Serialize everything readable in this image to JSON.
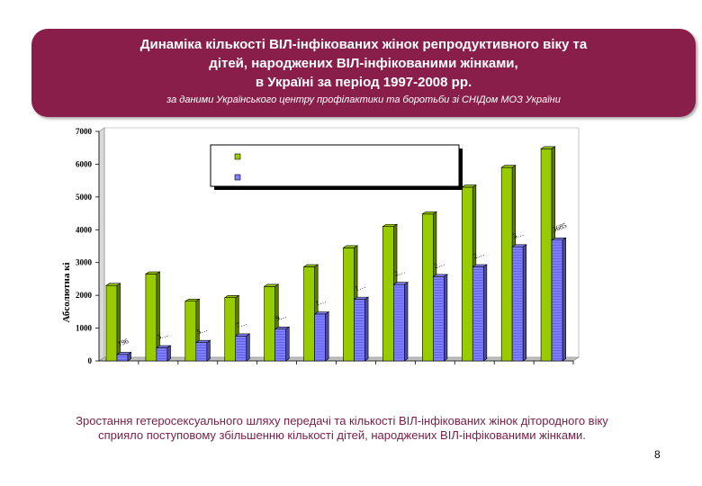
{
  "title": {
    "line1": "Динаміка кількості  ВІЛ-інфікованих жінок репродуктивного віку та",
    "line2": "дітей, народжених ВІЛ-інфікованими жінками,",
    "line3": "в Україні за період 1997-2008 рр.",
    "source": "за даними Українського центру профілактики та боротьби зі СНІДом МОЗ України"
  },
  "chart_data": {
    "type": "bar",
    "ylabel": "Абсолютна кі",
    "ylim": [
      0,
      7000
    ],
    "yticks": [
      0,
      1000,
      2000,
      3000,
      4000,
      5000,
      6000,
      7000
    ],
    "legend_position": "top-center",
    "series": [
      {
        "color": "#99cc00",
        "values": [
          2300,
          2650,
          1820,
          1930,
          2270,
          2870,
          3450,
          4100,
          4480,
          5300,
          5900,
          6470
        ]
      },
      {
        "color": "#8080ff",
        "values": [
          196,
          400,
          560,
          760,
          970,
          1430,
          1880,
          2330,
          2570,
          2870,
          3480,
          3685
        ]
      }
    ],
    "data_labels": [
      "196",
      "3…",
      "5…",
      "7…",
      "9…",
      "1…",
      "1…",
      "2…",
      "2…",
      "2…",
      "3…",
      "3685"
    ]
  },
  "caption": "Зростання гетеросексуального шляху передачі та кількості ВІЛ-інфікованих жінок дітородного віку сприяло поступовому збільшенню кількості дітей, народжених ВІЛ-інфікованими жінками.",
  "page_number": "8"
}
